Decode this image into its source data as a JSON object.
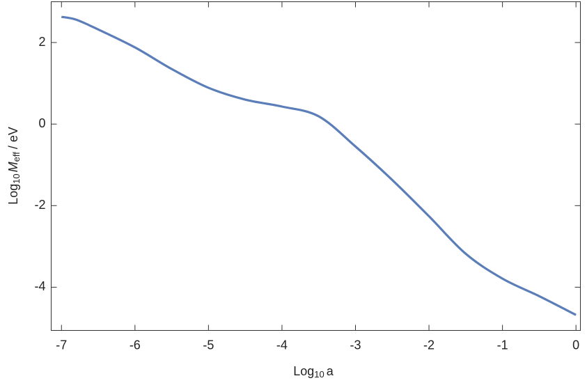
{
  "chart_data": {
    "type": "line",
    "x_label": [
      "Log",
      "10",
      "a"
    ],
    "y_label": [
      "Log",
      "10",
      "M",
      "eff",
      "/ eV"
    ],
    "xlim": [
      -7.14,
      0.06
    ],
    "ylim": [
      -5.06,
      3.0
    ],
    "xticks": [
      -7,
      -6,
      -5,
      -4,
      -3,
      -2,
      -1,
      0
    ],
    "yticks": [
      -4,
      -2,
      0,
      2
    ],
    "grid": false,
    "series": [
      {
        "color": "#5b7db8",
        "x": [
          -7,
          -6.8,
          -6.5,
          -6,
          -5.5,
          -5,
          -4.5,
          -4,
          -3.5,
          -3,
          -2.5,
          -2,
          -1.5,
          -1,
          -0.5,
          0
        ],
        "values": [
          2.63,
          2.56,
          2.32,
          1.88,
          1.35,
          0.89,
          0.6,
          0.43,
          0.19,
          -0.55,
          -1.37,
          -2.26,
          -3.18,
          -3.79,
          -4.22,
          -4.68
        ]
      }
    ]
  }
}
